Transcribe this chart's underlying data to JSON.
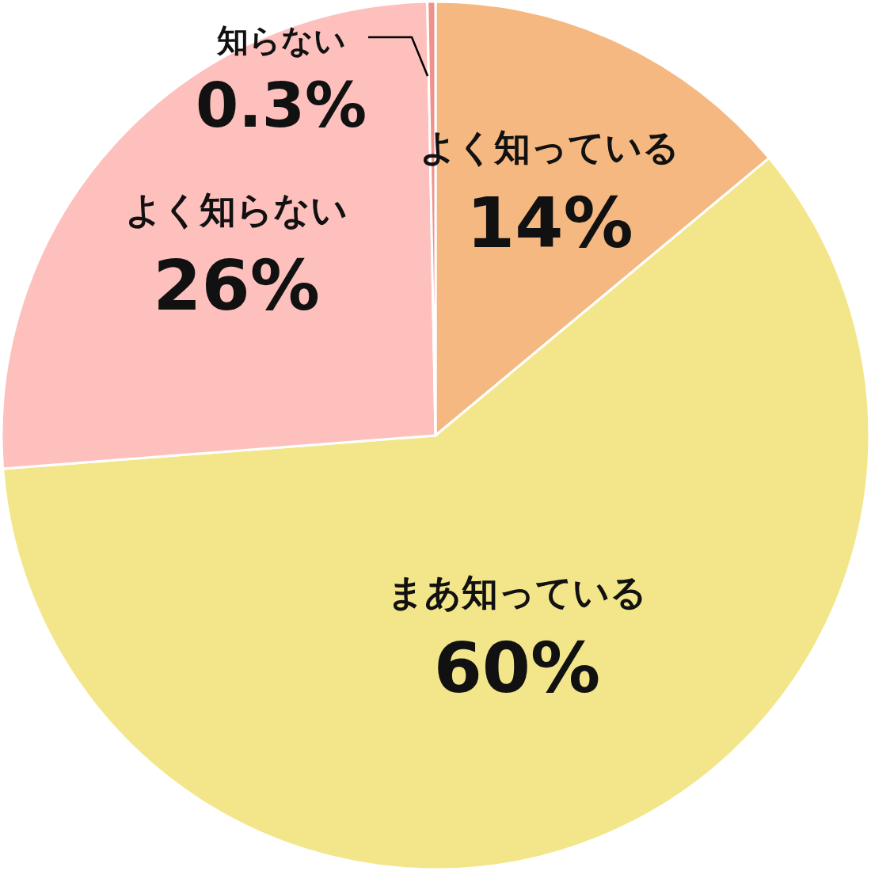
{
  "chart_data": {
    "type": "pie",
    "categories": [
      "よく知っている",
      "まあ知っている",
      "よく知らない",
      "知らない"
    ],
    "values": [
      14,
      60,
      26,
      0.3
    ],
    "colors": [
      "#f5b880",
      "#f3e68a",
      "#fec0bd",
      "#f0918a"
    ],
    "value_labels": [
      "14%",
      "60%",
      "26%",
      "0.3%"
    ]
  }
}
